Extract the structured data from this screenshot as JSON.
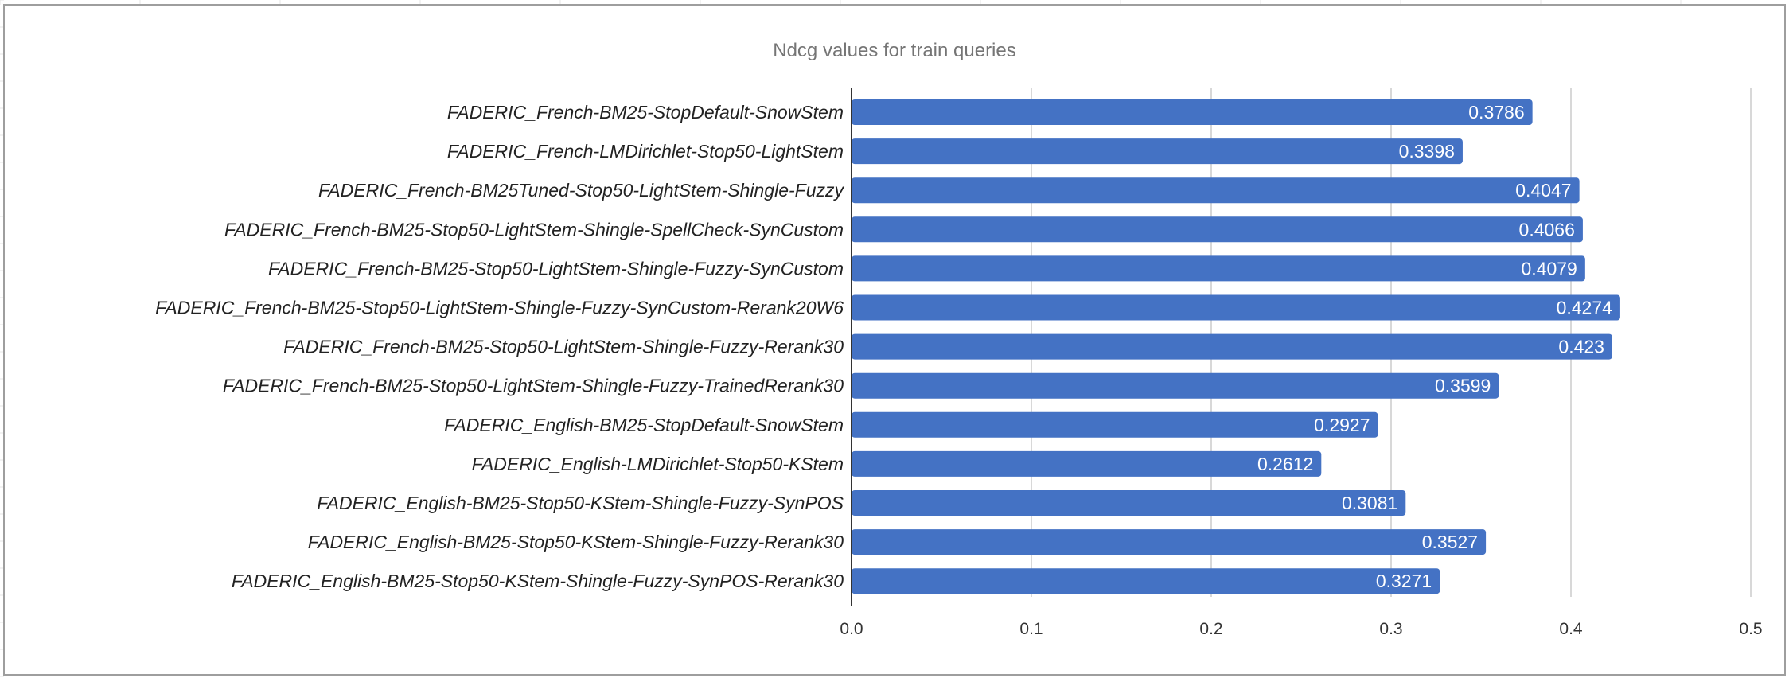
{
  "colors": {
    "bar": "#4472c4",
    "grid": "#cccccc",
    "axis": "#333333",
    "frame": "#9e9e9e",
    "background_grid": "#e6e6e6"
  },
  "chart_data": {
    "type": "bar",
    "orientation": "horizontal",
    "title": "Ndcg values for train queries",
    "xlabel": "",
    "ylabel": "",
    "xlim": [
      0.0,
      0.5
    ],
    "ticks": [
      0.0,
      0.1,
      0.2,
      0.3,
      0.4,
      0.5
    ],
    "tick_labels": [
      "0.0",
      "0.1",
      "0.2",
      "0.3",
      "0.4",
      "0.5"
    ],
    "grid": true,
    "legend": "none",
    "categories": [
      "FADERIC_French-BM25-StopDefault-SnowStem",
      "FADERIC_French-LMDirichlet-Stop50-LightStem",
      "FADERIC_French-BM25Tuned-Stop50-LightStem-Shingle-Fuzzy",
      "FADERIC_French-BM25-Stop50-LightStem-Shingle-SpellCheck-SynCustom",
      "FADERIC_French-BM25-Stop50-LightStem-Shingle-Fuzzy-SynCustom",
      "FADERIC_French-BM25-Stop50-LightStem-Shingle-Fuzzy-SynCustom-Rerank20W6",
      "FADERIC_French-BM25-Stop50-LightStem-Shingle-Fuzzy-Rerank30",
      "FADERIC_French-BM25-Stop50-LightStem-Shingle-Fuzzy-TrainedRerank30",
      "FADERIC_English-BM25-StopDefault-SnowStem",
      "FADERIC_English-LMDirichlet-Stop50-KStem",
      "FADERIC_English-BM25-Stop50-KStem-Shingle-Fuzzy-SynPOS",
      "FADERIC_English-BM25-Stop50-KStem-Shingle-Fuzzy-Rerank30",
      "FADERIC_English-BM25-Stop50-KStem-Shingle-Fuzzy-SynPOS-Rerank30"
    ],
    "values": [
      0.3786,
      0.3398,
      0.4047,
      0.4066,
      0.4079,
      0.4274,
      0.423,
      0.3599,
      0.2927,
      0.2612,
      0.3081,
      0.3527,
      0.3271
    ],
    "value_labels": [
      "0.3786",
      "0.3398",
      "0.4047",
      "0.4066",
      "0.4079",
      "0.4274",
      "0.423",
      "0.3599",
      "0.2927",
      "0.2612",
      "0.3081",
      "0.3527",
      "0.3271"
    ]
  }
}
